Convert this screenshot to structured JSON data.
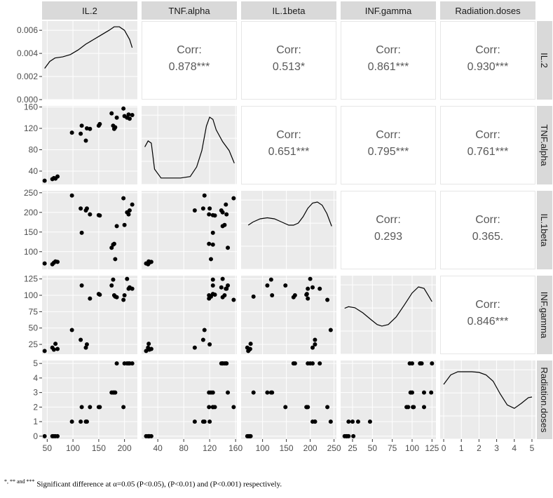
{
  "figure": {
    "footnote_marks": "*, ** and ***",
    "footnote_text": " Significant difference at α=0.05 (P<0.05), (P<0.01) and (P<0.001) respectively."
  },
  "colors": {
    "panel_bg": "#ebebeb",
    "grid": "#ffffff",
    "strip_bg": "#d9d9d9",
    "point": "#000000",
    "corr_text": "#595959",
    "tick": "#4d4d4d"
  },
  "chart_data": {
    "type": "scatter",
    "variables": [
      "IL.2",
      "TNF.alpha",
      "IL.1beta",
      "INF.gamma",
      "Radiation.doses"
    ],
    "ranges": {
      "IL.2": [
        40,
        225
      ],
      "TNF.alpha": [
        15,
        162
      ],
      "IL.1beta": [
        55,
        255
      ],
      "INF.gamma": [
        10,
        130
      ],
      "Radiation.doses": [
        -0.2,
        5.2
      ]
    },
    "ticks": {
      "IL.2": [
        50,
        100,
        150,
        200
      ],
      "TNF.alpha": [
        40,
        80,
        120,
        160
      ],
      "IL.1beta": [
        100,
        150,
        200,
        250
      ],
      "INF.gamma": [
        25,
        50,
        75,
        100,
        125
      ],
      "Radiation.doses": [
        0,
        1,
        2,
        3,
        4,
        5
      ]
    },
    "density_axis": {
      "ticks": [
        0.0,
        0.002,
        0.004,
        0.006
      ],
      "labels": [
        "0.000",
        "0.002",
        "0.004",
        "0.006"
      ],
      "range": [
        0,
        0.0068
      ]
    },
    "observations": [
      {
        "IL.2": 45,
        "TNF.alpha": 22,
        "IL.1beta": 70,
        "INF.gamma": 15,
        "Radiation.doses": 0
      },
      {
        "IL.2": 60,
        "TNF.alpha": 25,
        "IL.1beta": 68,
        "INF.gamma": 20,
        "Radiation.doses": 0
      },
      {
        "IL.2": 63,
        "TNF.alpha": 27,
        "IL.1beta": 72,
        "INF.gamma": 17,
        "Radiation.doses": 0
      },
      {
        "IL.2": 66,
        "TNF.alpha": 26,
        "IL.1beta": 75,
        "INF.gamma": 26,
        "Radiation.doses": 0
      },
      {
        "IL.2": 70,
        "TNF.alpha": 30,
        "IL.1beta": 74,
        "INF.gamma": 18,
        "Radiation.doses": 0
      },
      {
        "IL.2": 98,
        "TNF.alpha": 112,
        "IL.1beta": 243,
        "INF.gamma": 47,
        "Radiation.doses": 1
      },
      {
        "IL.2": 115,
        "TNF.alpha": 110,
        "IL.1beta": 210,
        "INF.gamma": 32,
        "Radiation.doses": 1
      },
      {
        "IL.2": 117,
        "TNF.alpha": 125,
        "IL.1beta": 148,
        "INF.gamma": 115,
        "Radiation.doses": 2
      },
      {
        "IL.2": 125,
        "TNF.alpha": 97,
        "IL.1beta": 205,
        "INF.gamma": 20,
        "Radiation.doses": 1
      },
      {
        "IL.2": 127,
        "TNF.alpha": 120,
        "IL.1beta": 210,
        "INF.gamma": 25,
        "Radiation.doses": 1
      },
      {
        "IL.2": 133,
        "TNF.alpha": 119,
        "IL.1beta": 195,
        "INF.gamma": 95,
        "Radiation.doses": 2
      },
      {
        "IL.2": 150,
        "TNF.alpha": 125,
        "IL.1beta": 193,
        "INF.gamma": 102,
        "Radiation.doses": 2
      },
      {
        "IL.2": 152,
        "TNF.alpha": 128,
        "IL.1beta": 192,
        "INF.gamma": 101,
        "Radiation.doses": 2
      },
      {
        "IL.2": 175,
        "TNF.alpha": 148,
        "IL.1beta": 110,
        "INF.gamma": 115,
        "Radiation.doses": 3
      },
      {
        "IL.2": 178,
        "TNF.alpha": 125,
        "IL.1beta": 118,
        "INF.gamma": 124,
        "Radiation.doses": 3
      },
      {
        "IL.2": 180,
        "TNF.alpha": 119,
        "IL.1beta": 120,
        "INF.gamma": 100,
        "Radiation.doses": 3
      },
      {
        "IL.2": 182,
        "TNF.alpha": 122,
        "IL.1beta": 81,
        "INF.gamma": 98,
        "Radiation.doses": 3
      },
      {
        "IL.2": 185,
        "TNF.alpha": 140,
        "IL.1beta": 165,
        "INF.gamma": 97,
        "Radiation.doses": 5
      },
      {
        "IL.2": 198,
        "TNF.alpha": 157,
        "IL.1beta": 236,
        "INF.gamma": 93,
        "Radiation.doses": 2
      },
      {
        "IL.2": 200,
        "TNF.alpha": 143,
        "IL.1beta": 168,
        "INF.gamma": 100,
        "Radiation.doses": 5
      },
      {
        "IL.2": 205,
        "TNF.alpha": 140,
        "IL.1beta": 200,
        "INF.gamma": 125,
        "Radiation.doses": 5
      },
      {
        "IL.2": 208,
        "TNF.alpha": 146,
        "IL.1beta": 195,
        "INF.gamma": 110,
        "Radiation.doses": 5
      },
      {
        "IL.2": 210,
        "TNF.alpha": 138,
        "IL.1beta": 205,
        "INF.gamma": 112,
        "Radiation.doses": 5
      },
      {
        "IL.2": 215,
        "TNF.alpha": 145,
        "IL.1beta": 220,
        "INF.gamma": 110,
        "Radiation.doses": 5
      }
    ],
    "correlations": [
      {
        "row": "IL.2",
        "col": "TNF.alpha",
        "label": "Corr:",
        "value": "0.878***"
      },
      {
        "row": "IL.2",
        "col": "IL.1beta",
        "label": "Corr:",
        "value": "0.513*"
      },
      {
        "row": "IL.2",
        "col": "INF.gamma",
        "label": "Corr:",
        "value": "0.861***"
      },
      {
        "row": "IL.2",
        "col": "Radiation.doses",
        "label": "Corr:",
        "value": "0.930***"
      },
      {
        "row": "TNF.alpha",
        "col": "IL.1beta",
        "label": "Corr:",
        "value": "0.651***"
      },
      {
        "row": "TNF.alpha",
        "col": "INF.gamma",
        "label": "Corr:",
        "value": "0.795***"
      },
      {
        "row": "TNF.alpha",
        "col": "Radiation.doses",
        "label": "Corr:",
        "value": "0.761***"
      },
      {
        "row": "IL.1beta",
        "col": "INF.gamma",
        "label": "Corr:",
        "value": "0.293"
      },
      {
        "row": "IL.1beta",
        "col": "Radiation.doses",
        "label": "Corr:",
        "value": "0.365."
      },
      {
        "row": "INF.gamma",
        "col": "Radiation.doses",
        "label": "Corr:",
        "value": "0.846***"
      }
    ],
    "densities": {
      "IL.2": {
        "x": [
          45,
          55,
          65,
          80,
          95,
          110,
          125,
          140,
          155,
          170,
          180,
          190,
          200,
          210,
          215
        ],
        "y": [
          0.0027,
          0.0033,
          0.0036,
          0.0037,
          0.0039,
          0.0043,
          0.0048,
          0.0052,
          0.0056,
          0.006,
          0.0063,
          0.0063,
          0.006,
          0.0052,
          0.0045
        ]
      },
      "TNF.alpha": {
        "x": [
          20,
          25,
          30,
          35,
          45,
          60,
          75,
          90,
          100,
          108,
          115,
          120,
          125,
          130,
          140,
          150,
          158
        ],
        "y": [
          0.0045,
          0.0053,
          0.005,
          0.0015,
          0.0003,
          0.0003,
          0.0003,
          0.0005,
          0.0018,
          0.004,
          0.0073,
          0.0085,
          0.0082,
          0.0068,
          0.0052,
          0.004,
          0.0023
        ]
      },
      "IL.1beta": {
        "x": [
          70,
          80,
          95,
          110,
          125,
          140,
          155,
          165,
          175,
          185,
          195,
          205,
          215,
          225,
          235,
          245
        ],
        "y": [
          0.0038,
          0.0041,
          0.0044,
          0.0045,
          0.0044,
          0.0041,
          0.0038,
          0.0038,
          0.004,
          0.0046,
          0.0054,
          0.0059,
          0.006,
          0.0057,
          0.0049,
          0.0037
        ]
      },
      "INF.gamma": {
        "x": [
          15,
          20,
          28,
          38,
          48,
          56,
          62,
          70,
          80,
          90,
          100,
          108,
          115,
          120,
          125
        ],
        "y": [
          0.0082,
          0.0085,
          0.0083,
          0.0073,
          0.006,
          0.005,
          0.0047,
          0.005,
          0.0065,
          0.0088,
          0.0112,
          0.0124,
          0.0121,
          0.0108,
          0.0095
        ]
      },
      "Radiation.doses": {
        "x": [
          0,
          0.4,
          0.8,
          1.2,
          1.6,
          2.0,
          2.4,
          2.8,
          3.2,
          3.6,
          4.0,
          4.4,
          4.8,
          5.0
        ],
        "y": [
          0.16,
          0.19,
          0.2,
          0.2,
          0.2,
          0.198,
          0.19,
          0.17,
          0.13,
          0.095,
          0.084,
          0.1,
          0.118,
          0.12
        ]
      }
    }
  }
}
